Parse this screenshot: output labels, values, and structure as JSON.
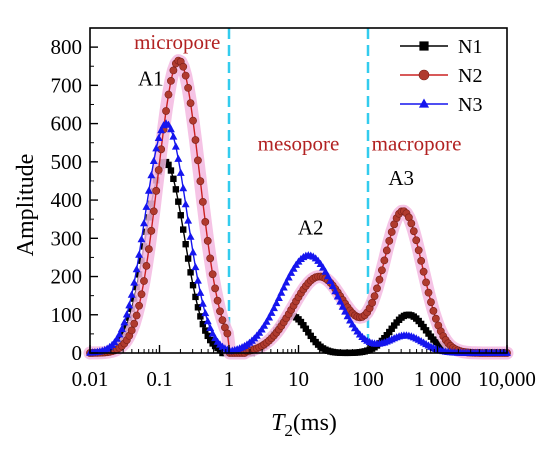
{
  "chart_data": {
    "type": "scatter",
    "x_scale": "log",
    "xlim": [
      0.01,
      10000
    ],
    "ylim": [
      0,
      850
    ],
    "xlabel_main": "T",
    "xlabel_sub": "2",
    "xlabel_unit": "(ms)",
    "ylabel": "Amplitude",
    "x_ticks": [
      {
        "value": 0.01,
        "label": "0.01"
      },
      {
        "value": 0.1,
        "label": "0.1"
      },
      {
        "value": 1,
        "label": "1"
      },
      {
        "value": 10,
        "label": "10"
      },
      {
        "value": 100,
        "label": "100"
      },
      {
        "value": 1000,
        "label": "1 000"
      },
      {
        "value": 10000,
        "label": "10,000"
      }
    ],
    "y_ticks": [
      0,
      100,
      200,
      300,
      400,
      500,
      600,
      700,
      800
    ],
    "boundaries": [
      1,
      100
    ],
    "boundary_color": "#33ccee",
    "regions": [
      {
        "label": "micropore",
        "x": 0.18,
        "y": 795
      },
      {
        "label": "mesopore",
        "x": 10,
        "y": 530
      },
      {
        "label": "macropore",
        "x": 500,
        "y": 530
      }
    ],
    "peak_labels": [
      {
        "label": "A1",
        "x": 0.075,
        "y": 700
      },
      {
        "label": "A2",
        "x": 15,
        "y": 310
      },
      {
        "label": "A3",
        "x": 300,
        "y": 440
      }
    ],
    "legend_position": "top-right",
    "series": [
      {
        "name": "N1",
        "color": "#000000",
        "marker": "square",
        "halo": false,
        "peaks": [
          {
            "center": 0.12,
            "height": 500,
            "width": 0.28,
            "from": 0.008,
            "to": 0.8
          },
          {
            "center": 8,
            "height": 97,
            "width": 0.22,
            "from": 2.2,
            "to": 3000
          },
          {
            "center": 380,
            "height": 100,
            "width": 0.25,
            "from": 2.2,
            "to": 3000
          }
        ]
      },
      {
        "name": "N2",
        "color": "#cc2222",
        "marker": "circle",
        "halo": true,
        "peaks": [
          {
            "center": 0.19,
            "height": 765,
            "width": 0.3,
            "from": 0.008,
            "to": 1.0
          },
          {
            "center": 20,
            "height": 200,
            "width": 0.38,
            "from": 1.8,
            "to": 6000
          },
          {
            "center": 320,
            "height": 370,
            "width": 0.28,
            "from": 1.8,
            "to": 6000
          }
        ]
      },
      {
        "name": "N3",
        "color": "#1515ee",
        "marker": "triangle",
        "halo": false,
        "peaks": [
          {
            "center": 0.125,
            "height": 600,
            "width": 0.3,
            "from": 0.008,
            "to": 1.0
          },
          {
            "center": 14,
            "height": 255,
            "width": 0.4,
            "from": 1.0,
            "to": 10000
          },
          {
            "center": 350,
            "height": 45,
            "width": 0.25,
            "from": 1.0,
            "to": 10000
          }
        ]
      }
    ]
  }
}
